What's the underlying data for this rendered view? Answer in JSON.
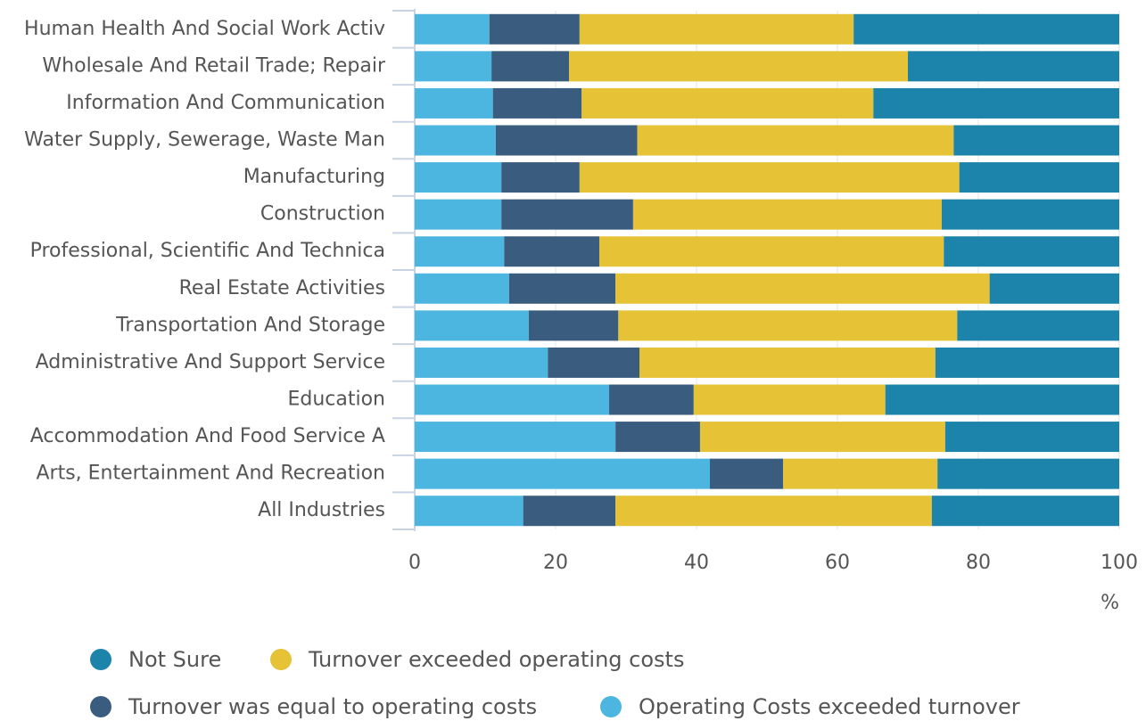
{
  "chart_data": {
    "type": "stacked-bar-horizontal",
    "categories": [
      "Human Health And Social Work Activ",
      "Wholesale And Retail Trade; Repair",
      "Information And Communication",
      "Water Supply, Sewerage, Waste Man",
      "Manufacturing",
      "Construction",
      "Professional, Scientific And Technica",
      "Real Estate Activities",
      "Transportation And Storage",
      "Administrative And Support Service",
      "Education",
      "Accommodation And Food Service A",
      "Arts, Entertainment And Recreation",
      "All Industries"
    ],
    "series": [
      {
        "name": "Operating Costs exceeded turnover",
        "color": "#4db6e0",
        "values": [
          10.6,
          10.9,
          11.1,
          11.5,
          12.3,
          12.3,
          12.7,
          13.4,
          16.2,
          18.9,
          27.6,
          28.5,
          41.9,
          15.4
        ]
      },
      {
        "name": "Turnover was equal to operating costs",
        "color": "#3a5c7e",
        "values": [
          12.8,
          11.0,
          12.6,
          20.1,
          11.1,
          18.7,
          13.5,
          15.1,
          12.7,
          13.0,
          12.0,
          12.0,
          10.4,
          13.1
        ]
      },
      {
        "name": "Turnover exceeded operating costs",
        "color": "#e5c236",
        "values": [
          38.9,
          48.1,
          41.4,
          44.9,
          53.9,
          43.8,
          48.9,
          53.1,
          48.1,
          42.0,
          27.2,
          34.8,
          21.9,
          44.9
        ]
      },
      {
        "name": "Not Sure",
        "color": "#1c84ab",
        "values": [
          37.7,
          30.0,
          34.9,
          23.5,
          22.7,
          25.2,
          24.9,
          18.4,
          23.0,
          26.1,
          33.2,
          24.7,
          25.8,
          26.6
        ]
      }
    ],
    "xlabel": "%",
    "xlim": [
      0,
      100
    ],
    "xticks": [
      0,
      20,
      40,
      60,
      80,
      100
    ]
  }
}
